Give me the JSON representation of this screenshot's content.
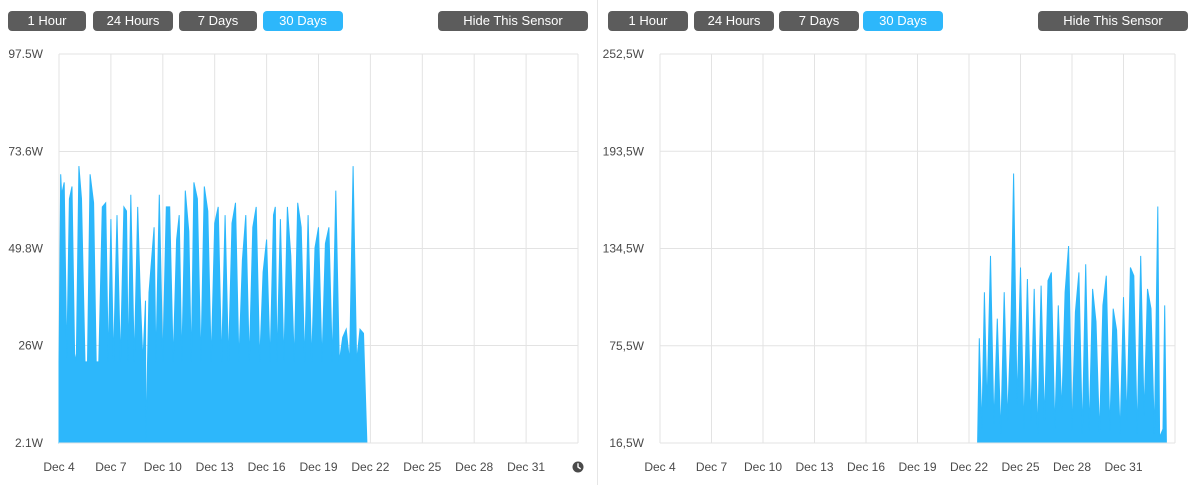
{
  "colors": {
    "accent": "#2db7fb",
    "button_bg": "#5c5c5c",
    "button_text": "#ffffff",
    "grid": "#e3e3e3",
    "axis_text": "#4a4a4a",
    "area_fill": "#2db7fb"
  },
  "panels": [
    {
      "buttons": {
        "b1": "1 Hour",
        "b24": "24 Hours",
        "b7": "7 Days",
        "b30": "30 Days",
        "hide": "Hide This Sensor",
        "active": "30 Days"
      }
    },
    {
      "buttons": {
        "b1": "1 Hour",
        "b24": "24 Hours",
        "b7": "7 Days",
        "b30": "30 Days",
        "hide": "Hide This Sensor",
        "active": "30 Days"
      }
    }
  ],
  "chart_data": [
    {
      "type": "area",
      "title": "",
      "xlabel": "",
      "ylabel": "",
      "unit": "W",
      "xlim": [
        4,
        34
      ],
      "ylim": [
        2.1,
        97.5
      ],
      "y_ticks": [
        2.1,
        26,
        49.8,
        73.6,
        97.5
      ],
      "y_tick_labels": [
        "2.1W",
        "26W",
        "49.8W",
        "73.6W",
        "97.5W"
      ],
      "x_ticks": [
        4,
        7,
        10,
        13,
        16,
        19,
        22,
        25,
        28,
        31
      ],
      "x_tick_labels": [
        "Dec 4",
        "Dec 7",
        "Dec 10",
        "Dec 13",
        "Dec 16",
        "Dec 19",
        "Dec 22",
        "Dec 25",
        "Dec 28",
        "Dec 31"
      ],
      "grid": true,
      "series": [
        {
          "color": "#2db7fb",
          "x": [
            4.0,
            4.1,
            4.15,
            4.3,
            4.45,
            4.6,
            4.75,
            4.9,
            5.0,
            5.15,
            5.3,
            5.5,
            5.65,
            5.8,
            6.0,
            6.15,
            6.3,
            6.5,
            6.7,
            6.85,
            7.0,
            7.15,
            7.35,
            7.55,
            7.75,
            7.9,
            8.0,
            8.15,
            8.35,
            8.55,
            8.7,
            8.85,
            9.0,
            9.02,
            9.2,
            9.5,
            9.6,
            9.8,
            10.0,
            10.2,
            10.4,
            10.6,
            10.8,
            10.95,
            11.1,
            11.3,
            11.5,
            11.65,
            11.8,
            12.0,
            12.2,
            12.4,
            12.6,
            12.8,
            13.0,
            13.2,
            13.4,
            13.6,
            13.8,
            14.0,
            14.2,
            14.4,
            14.6,
            14.8,
            15.0,
            15.2,
            15.4,
            15.6,
            15.8,
            16.0,
            16.2,
            16.4,
            16.5,
            16.6,
            16.8,
            17.0,
            17.2,
            17.4,
            17.6,
            17.8,
            18.0,
            18.2,
            18.4,
            18.6,
            18.8,
            19.0,
            19.2,
            19.4,
            19.6,
            19.8,
            20.0,
            20.2,
            20.4,
            20.6,
            20.8,
            21.0,
            21.2,
            21.4,
            21.6,
            21.8,
            22.0,
            22.1,
            22.2,
            22.3,
            22.5,
            22.6,
            22.7,
            23.0,
            25.0,
            28.0,
            31.0,
            34.0
          ],
          "y": [
            22,
            68,
            63,
            66,
            23,
            62,
            65,
            24,
            22,
            70,
            62,
            22,
            22,
            68,
            61,
            22,
            22,
            60,
            61,
            22,
            57,
            22,
            58,
            22,
            60,
            59,
            22,
            63,
            22,
            60,
            38,
            22,
            37,
            2.1,
            39,
            55,
            22,
            63,
            22,
            60,
            60,
            22,
            52,
            58,
            22,
            64,
            54,
            22,
            66,
            62,
            22,
            65,
            59,
            22,
            56,
            60,
            22,
            58,
            22,
            56,
            61,
            22,
            47,
            58,
            22,
            55,
            60,
            22,
            44,
            52,
            22,
            58,
            60,
            22,
            57,
            22,
            60,
            48,
            22,
            61,
            55,
            22,
            58,
            22,
            50,
            55,
            22,
            51,
            55,
            22,
            64,
            22,
            28,
            30,
            22,
            70,
            22,
            30,
            29,
            2.1,
            2.1,
            2.1,
            2.1,
            2.1,
            2.1,
            2.1,
            2.1,
            2.1,
            2.1,
            2.1,
            2.1,
            2.1
          ]
        }
      ]
    },
    {
      "type": "area",
      "title": "",
      "xlabel": "",
      "ylabel": "",
      "unit": "W",
      "xlim": [
        4,
        34
      ],
      "ylim": [
        16.5,
        252.5
      ],
      "y_ticks": [
        16.5,
        75.5,
        134.5,
        193.5,
        252.5
      ],
      "y_tick_labels": [
        "16,5W",
        "75,5W",
        "134,5W",
        "193,5W",
        "252,5W"
      ],
      "x_ticks": [
        4,
        7,
        10,
        13,
        16,
        19,
        22,
        25,
        28,
        31
      ],
      "x_tick_labels": [
        "Dec 4",
        "Dec 7",
        "Dec 10",
        "Dec 13",
        "Dec 16",
        "Dec 19",
        "Dec 22",
        "Dec 25",
        "Dec 28",
        "Dec 31"
      ],
      "grid": true,
      "series": [
        {
          "color": "#2db7fb",
          "x": [
            4.0,
            22.5,
            22.6,
            22.75,
            22.9,
            23.05,
            23.25,
            23.45,
            23.65,
            23.85,
            24.05,
            24.25,
            24.45,
            24.6,
            24.8,
            25.0,
            25.2,
            25.4,
            25.6,
            25.8,
            26.0,
            26.2,
            26.4,
            26.6,
            26.8,
            27.0,
            27.2,
            27.4,
            27.6,
            27.8,
            28.0,
            28.2,
            28.4,
            28.6,
            28.8,
            29.0,
            29.2,
            29.4,
            29.6,
            29.8,
            30.0,
            30.2,
            30.4,
            30.6,
            30.8,
            31.0,
            31.2,
            31.4,
            31.6,
            31.8,
            32.0,
            32.2,
            32.4,
            32.6,
            32.8,
            33.0,
            33.1,
            33.3,
            33.4,
            33.5
          ],
          "y": [
            16.5,
            16.5,
            80,
            25,
            108,
            38,
            130,
            28,
            92,
            22,
            108,
            30,
            92,
            180,
            40,
            123,
            25,
            116,
            30,
            110,
            22,
            112,
            30,
            115,
            120,
            25,
            100,
            35,
            108,
            136,
            24,
            96,
            120,
            22,
            125,
            24,
            110,
            90,
            22,
            100,
            118,
            24,
            98,
            85,
            22,
            105,
            30,
            123,
            118,
            22,
            130,
            33,
            110,
            98,
            22,
            160,
            20,
            25,
            100,
            16.5
          ]
        }
      ]
    }
  ]
}
